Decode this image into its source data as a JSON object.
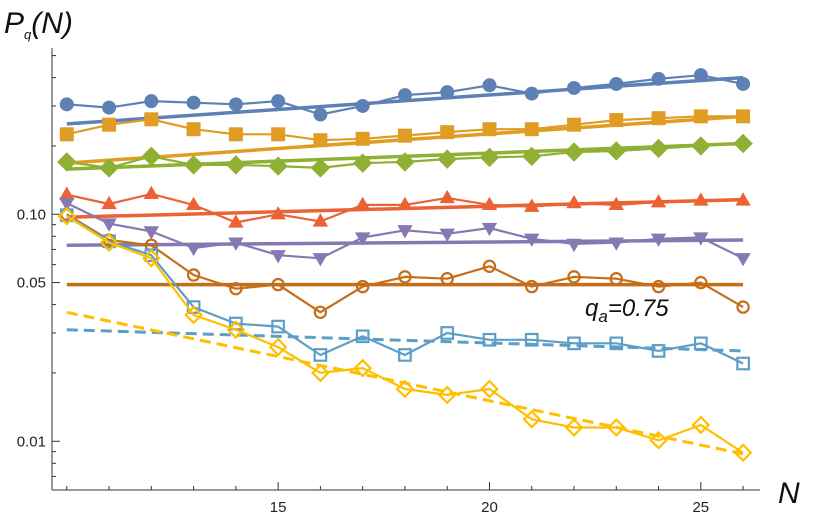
{
  "chart_data": {
    "type": "line",
    "ylabel_main": "P",
    "ylabel_sub": "q",
    "ylabel_tail": "(N)",
    "xlabel": "N",
    "annotation_main": "q",
    "annotation_sub": "a",
    "annotation_tail": "=0.75",
    "y_scale": "log",
    "xlim": [
      9.65,
      26.4
    ],
    "ylim": [
      0.0061,
      0.54
    ],
    "x_ticks": [
      15,
      20,
      25
    ],
    "x_tick_labels": [
      "15",
      "20",
      "25"
    ],
    "y_ticks": [
      0.01,
      0.05,
      0.1
    ],
    "y_tick_labels": [
      "0.01",
      "0.05",
      "0.10"
    ],
    "grid": false,
    "series": [
      {
        "color": "#5E81B5",
        "marker": "circle",
        "filled": true,
        "x": [
          10,
          11,
          12,
          13,
          14,
          15,
          16,
          17,
          18,
          19,
          20,
          21,
          22,
          23,
          24,
          25,
          26
        ],
        "y": [
          0.305,
          0.295,
          0.315,
          0.31,
          0.305,
          0.315,
          0.275,
          0.3,
          0.335,
          0.345,
          0.37,
          0.34,
          0.36,
          0.375,
          0.395,
          0.41,
          0.375
        ],
        "fit": [
          [
            10,
            0.25
          ],
          [
            26,
            0.4
          ]
        ]
      },
      {
        "color": "#E19C24",
        "marker": "square",
        "filled": true,
        "x": [
          10,
          11,
          12,
          13,
          14,
          15,
          16,
          17,
          18,
          19,
          20,
          21,
          22,
          23,
          24,
          25,
          26
        ],
        "y": [
          0.225,
          0.248,
          0.262,
          0.237,
          0.225,
          0.225,
          0.212,
          0.215,
          0.222,
          0.23,
          0.237,
          0.237,
          0.248,
          0.26,
          0.265,
          0.27,
          0.27
        ],
        "fit": [
          [
            10,
            0.168
          ],
          [
            26,
            0.27
          ]
        ]
      },
      {
        "color": "#8FB032",
        "marker": "diamond",
        "filled": true,
        "x": [
          10,
          11,
          12,
          13,
          14,
          15,
          16,
          17,
          18,
          19,
          20,
          21,
          22,
          23,
          24,
          25,
          26
        ],
        "y": [
          0.17,
          0.16,
          0.18,
          0.165,
          0.165,
          0.163,
          0.16,
          0.168,
          0.17,
          0.175,
          0.178,
          0.18,
          0.188,
          0.19,
          0.195,
          0.2,
          0.205
        ],
        "fit": [
          [
            10,
            0.158
          ],
          [
            26,
            0.205
          ]
        ]
      },
      {
        "color": "#EB6235",
        "marker": "triangle-up",
        "filled": true,
        "x": [
          10,
          11,
          12,
          13,
          14,
          15,
          16,
          17,
          18,
          19,
          20,
          21,
          22,
          23,
          24,
          25,
          26
        ],
        "y": [
          0.122,
          0.111,
          0.123,
          0.11,
          0.092,
          0.1,
          0.093,
          0.11,
          0.11,
          0.118,
          0.11,
          0.108,
          0.112,
          0.11,
          0.113,
          0.115,
          0.115
        ],
        "fit": [
          [
            10,
            0.097
          ],
          [
            26,
            0.116
          ]
        ]
      },
      {
        "color": "#8778B3",
        "marker": "triangle-down",
        "filled": true,
        "x": [
          10,
          11,
          12,
          13,
          14,
          15,
          16,
          17,
          18,
          19,
          20,
          21,
          22,
          23,
          24,
          25,
          26
        ],
        "y": [
          0.112,
          0.091,
          0.084,
          0.071,
          0.075,
          0.066,
          0.064,
          0.079,
          0.085,
          0.082,
          0.087,
          0.078,
          0.074,
          0.075,
          0.078,
          0.079,
          0.064
        ],
        "fit": [
          [
            10,
            0.073
          ],
          [
            26,
            0.077
          ]
        ]
      },
      {
        "color": "#C56E1A",
        "marker": "circle",
        "filled": false,
        "x": [
          10,
          11,
          12,
          13,
          14,
          15,
          16,
          17,
          18,
          19,
          20,
          21,
          22,
          23,
          24,
          25,
          26
        ],
        "y": [
          0.1,
          0.077,
          0.073,
          0.054,
          0.047,
          0.049,
          0.037,
          0.048,
          0.053,
          0.052,
          0.059,
          0.048,
          0.053,
          0.052,
          0.048,
          0.05,
          0.039
        ],
        "fit": [
          [
            10,
            0.049
          ],
          [
            26,
            0.049
          ]
        ]
      },
      {
        "color": "#5D9EC7",
        "marker": "square",
        "filled": false,
        "x": [
          10,
          11,
          12,
          13,
          14,
          15,
          16,
          17,
          18,
          19,
          20,
          21,
          22,
          23,
          24,
          25,
          26
        ],
        "y": [
          0.099,
          0.076,
          0.066,
          0.039,
          0.033,
          0.032,
          0.024,
          0.029,
          0.024,
          0.03,
          0.028,
          0.028,
          0.027,
          0.027,
          0.025,
          0.027,
          0.022
        ],
        "fit": [
          [
            10,
            0.031
          ],
          [
            26,
            0.025
          ]
        ],
        "fit_dashed": true
      },
      {
        "color": "#FFBF00",
        "marker": "diamond",
        "filled": false,
        "x": [
          10,
          11,
          12,
          13,
          14,
          15,
          16,
          17,
          18,
          19,
          20,
          21,
          22,
          23,
          24,
          25,
          26
        ],
        "y": [
          0.098,
          0.075,
          0.064,
          0.036,
          0.031,
          0.026,
          0.02,
          0.021,
          0.017,
          0.016,
          0.017,
          0.0125,
          0.0115,
          0.0115,
          0.0101,
          0.0118,
          0.0089
        ],
        "fit": [
          [
            10,
            0.037
          ],
          [
            26,
            0.0088
          ]
        ],
        "fit_dashed": true
      }
    ]
  }
}
